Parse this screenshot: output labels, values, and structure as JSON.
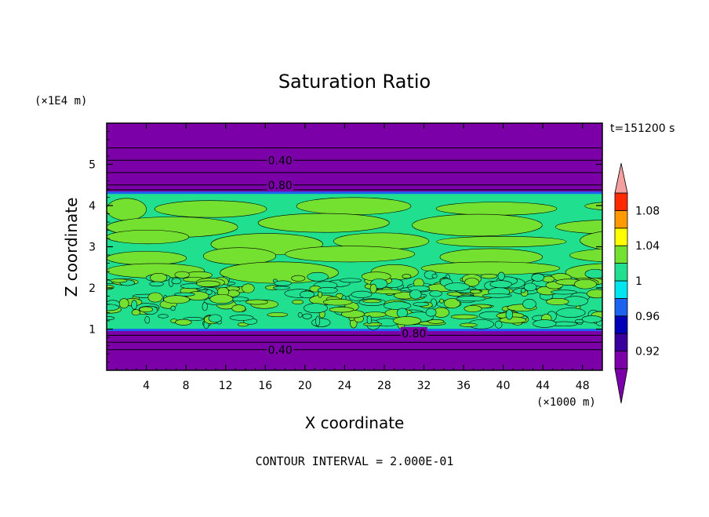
{
  "chart_data": {
    "type": "heatmap",
    "title": "Saturation Ratio",
    "xlabel": "X coordinate",
    "ylabel": "Z coordinate",
    "x_unit_label": "(×1000 m)",
    "y_unit_label": "(×1E4 m)",
    "time_label": "t=151200 s",
    "footer": "CONTOUR INTERVAL = 2.000E-01",
    "xlim": [
      0,
      50
    ],
    "ylim": [
      0,
      6
    ],
    "x_ticks": [
      "4",
      "8",
      "12",
      "16",
      "20",
      "24",
      "28",
      "32",
      "36",
      "40",
      "44",
      "48"
    ],
    "y_ticks": [
      "1",
      "2",
      "3",
      "4",
      "5"
    ],
    "contour_labels": [
      {
        "text": "0.40",
        "x": 17.5,
        "z": 5.1
      },
      {
        "text": "0.80",
        "x": 17.5,
        "z": 4.5
      },
      {
        "text": "0.80",
        "x": 31.0,
        "z": 0.9
      },
      {
        "text": "0.40",
        "x": 17.5,
        "z": 0.5
      }
    ],
    "colorbar": {
      "tick_labels": [
        "1.08",
        "1.04",
        "1",
        "0.96",
        "0.92"
      ],
      "levels": [
        0.9,
        0.92,
        0.94,
        0.96,
        0.98,
        1.0,
        1.02,
        1.04,
        1.06,
        1.08,
        1.1
      ],
      "colors": [
        "#7b00a8",
        "#3a009e",
        "#0000b8",
        "#1e62f0",
        "#00e6f0",
        "#20e090",
        "#74e030",
        "#ffff00",
        "#ff9a00",
        "#ff2a00",
        "#f4a0a0"
      ]
    },
    "colors": {
      "dry_layer": "#7b00a8",
      "moist_main": "#20e090",
      "moist_alt": "#74e030",
      "boundary": "#1e62f0",
      "contour_line": "#000000"
    }
  }
}
